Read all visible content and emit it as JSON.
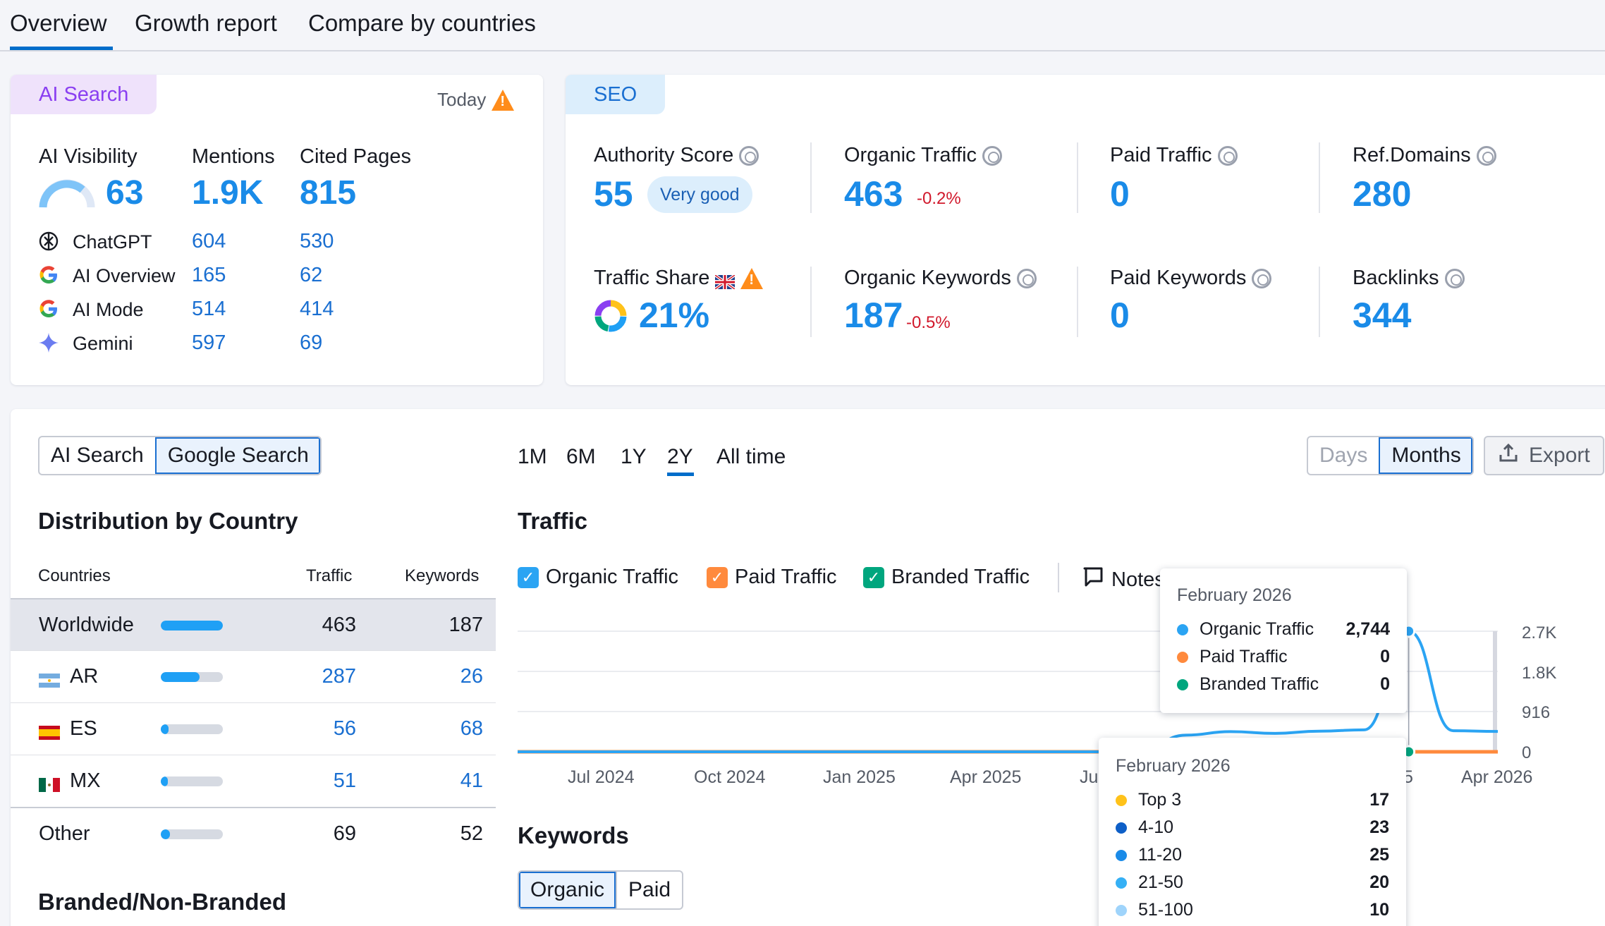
{
  "tabs": [
    {
      "label": "Overview"
    },
    {
      "label": "Growth report"
    },
    {
      "label": "Compare by countries"
    }
  ],
  "ai_search": {
    "tag": "AI Search",
    "date": "Today",
    "visibility_label": "AI Visibility",
    "visibility_value": "63",
    "mentions_label": "Mentions",
    "mentions_value": "1.9K",
    "cited_label": "Cited Pages",
    "cited_value": "815",
    "rows": [
      {
        "name": "ChatGPT",
        "mentions": "604",
        "cited": "530",
        "icon": "chatgpt-icon"
      },
      {
        "name": "AI Overview",
        "mentions": "165",
        "cited": "62",
        "icon": "google-icon"
      },
      {
        "name": "AI Mode",
        "mentions": "514",
        "cited": "414",
        "icon": "google-icon"
      },
      {
        "name": "Gemini",
        "mentions": "597",
        "cited": "69",
        "icon": "gemini-icon"
      }
    ]
  },
  "seo": {
    "tag": "SEO",
    "authority_label": "Authority Score",
    "authority_value": "55",
    "authority_badge": "Very good",
    "organic_traffic_label": "Organic Traffic",
    "organic_traffic_value": "463",
    "organic_traffic_change": "-0.2%",
    "paid_traffic_label": "Paid Traffic",
    "paid_traffic_value": "0",
    "ref_domains_label": "Ref.Domains",
    "ref_domains_value": "280",
    "traffic_share_label": "Traffic Share",
    "traffic_share_value": "21%",
    "organic_keywords_label": "Organic Keywords",
    "organic_keywords_value": "187",
    "organic_keywords_change": "-0.5%",
    "paid_keywords_label": "Paid Keywords",
    "paid_keywords_value": "0",
    "backlinks_label": "Backlinks",
    "backlinks_value": "344"
  },
  "source_toggle": {
    "options": [
      "AI Search",
      "Google Search"
    ],
    "selected": "Google Search"
  },
  "ranges": [
    "1M",
    "6M",
    "1Y",
    "2Y",
    "All time"
  ],
  "selected_range": "2Y",
  "granularity": {
    "options": [
      "Days",
      "Months"
    ],
    "selected": "Months"
  },
  "export_label": "Export",
  "distribution": {
    "title": "Distribution by Country",
    "col_countries": "Countries",
    "col_traffic": "Traffic",
    "col_keywords": "Keywords",
    "rows": [
      {
        "name": "Worldwide",
        "traffic": "463",
        "keywords": "187",
        "share": 1.0
      },
      {
        "name": "AR",
        "traffic": "287",
        "keywords": "26",
        "share": 0.62
      },
      {
        "name": "ES",
        "traffic": "56",
        "keywords": "68",
        "share": 0.12
      },
      {
        "name": "MX",
        "traffic": "51",
        "keywords": "41",
        "share": 0.11
      },
      {
        "name": "Other",
        "traffic": "69",
        "keywords": "52",
        "share": 0.15
      }
    ]
  },
  "branded_title": "Branded/Non-Branded",
  "traffic": {
    "title": "Traffic",
    "legend": [
      "Organic Traffic",
      "Paid Traffic",
      "Branded Traffic"
    ],
    "notes_label": "Notes",
    "colors": {
      "organic": "#2ba4f3",
      "paid": "#ff8a3d",
      "branded": "#00a67e"
    }
  },
  "chart_data": {
    "type": "line",
    "x": [
      "Jun 2024",
      "Jul 2024",
      "Aug 2024",
      "Sep 2024",
      "Oct 2024",
      "Nov 2024",
      "Dec 2024",
      "Jan 2025",
      "Feb 2025",
      "Mar 2025",
      "Apr 2025",
      "May 2025",
      "Jun 2025",
      "Jul 2025",
      "Aug 2025",
      "Sep 2025",
      "Oct 2025",
      "Nov 2025",
      "Dec 2025",
      "Jan 2026",
      "Feb 2026",
      "Mar 2026",
      "Apr 2026"
    ],
    "x_tick_labels": [
      "Jul 2024",
      "Oct 2024",
      "Jan 2025",
      "Apr 2025",
      "Ju",
      "5",
      "Apr 2026"
    ],
    "y_tick_labels": [
      "2.7K",
      "1.8K",
      "916",
      "0"
    ],
    "ylim": [
      0,
      2744
    ],
    "series": [
      {
        "name": "Organic Traffic",
        "values": [
          0,
          0,
          0,
          0,
          0,
          0,
          0,
          0,
          0,
          0,
          0,
          0,
          0,
          0,
          30,
          380,
          460,
          420,
          470,
          500,
          2744,
          480,
          463
        ]
      },
      {
        "name": "Paid Traffic",
        "values": [
          0,
          0,
          0,
          0,
          0,
          0,
          0,
          0,
          0,
          0,
          0,
          0,
          0,
          0,
          0,
          0,
          0,
          0,
          0,
          0,
          0,
          0,
          0
        ]
      },
      {
        "name": "Branded Traffic",
        "values": [
          0,
          0,
          0,
          0,
          0,
          0,
          0,
          0,
          0,
          0,
          0,
          0,
          0,
          0,
          0,
          0,
          0,
          0,
          0,
          0,
          0,
          0,
          0
        ]
      }
    ]
  },
  "tooltip_traffic": {
    "title": "February 2026",
    "rows": [
      {
        "label": "Organic Traffic",
        "value": "2,744",
        "color": "#2ba4f3"
      },
      {
        "label": "Paid Traffic",
        "value": "0",
        "color": "#ff8a3d"
      },
      {
        "label": "Branded Traffic",
        "value": "0",
        "color": "#00a67e"
      }
    ]
  },
  "tooltip_keywords": {
    "title": "February 2026",
    "rows": [
      {
        "label": "Top 3",
        "value": "17",
        "color": "#ffc21a"
      },
      {
        "label": "4-10",
        "value": "23",
        "color": "#0e5fc7"
      },
      {
        "label": "11-20",
        "value": "25",
        "color": "#1a8be8"
      },
      {
        "label": "21-50",
        "value": "20",
        "color": "#35b0f5"
      },
      {
        "label": "51-100",
        "value": "10",
        "color": "#9fd4fb"
      }
    ]
  },
  "keywords": {
    "title": "Keywords",
    "toggle": [
      "Organic",
      "Paid"
    ],
    "selected": "Organic"
  }
}
